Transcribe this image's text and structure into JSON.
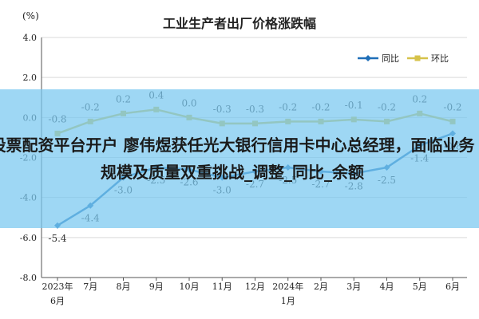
{
  "chart_data": {
    "type": "line",
    "title": "工业生产者出厂价格涨跌幅",
    "unit_label": "(%)",
    "categories": [
      [
        "2023年",
        "6月"
      ],
      [
        "7月"
      ],
      [
        "8月"
      ],
      [
        "9月"
      ],
      [
        "10月"
      ],
      [
        "11月"
      ],
      [
        "12月"
      ],
      [
        "2024年",
        "1月"
      ],
      [
        "2月"
      ],
      [
        "3月"
      ],
      [
        "4月"
      ],
      [
        "5月"
      ],
      [
        "6月"
      ]
    ],
    "ylim": [
      -8.0,
      4.0
    ],
    "yticks": [
      "4.0",
      "2.0",
      "0.0",
      "-2.0",
      "-4.0",
      "-6.0",
      "-8.0"
    ],
    "ytick_values": [
      4,
      2,
      0,
      -2,
      -4,
      -6,
      -8
    ],
    "grid": true,
    "legend_position": "top-right",
    "series": [
      {
        "name": "同比",
        "color": "#1f6fb8",
        "values": [
          -5.4,
          -4.4,
          -3.0,
          -2.5,
          -2.6,
          -3.0,
          -2.7,
          -2.5,
          -2.7,
          -2.8,
          -2.5,
          -1.4,
          -0.8
        ],
        "labels": [
          "-5.4",
          "-4.4",
          "-3.0",
          "-2.5",
          "-2.6",
          "-3.0",
          "-2.7",
          "-2.5",
          "-2.7",
          "-2.8",
          "-2.5",
          "-1.4",
          "-0.8"
        ]
      },
      {
        "name": "环比",
        "color": "#d6c24a",
        "values": [
          -0.8,
          -0.2,
          0.2,
          0.4,
          0.0,
          -0.3,
          -0.3,
          -0.2,
          -0.2,
          -0.1,
          -0.2,
          0.2,
          -0.2
        ],
        "labels": [
          "-0.8",
          "-0.2",
          "0.2",
          "0.4",
          "0.0",
          "-0.3",
          "-0.3",
          "-0.2",
          "-0.2",
          "-0.1",
          "-0.2",
          "0.2",
          "-0.2"
        ]
      }
    ]
  },
  "overlay": {
    "text": "股票配资平台开户 廖伟煜获任光大银行信用卡中心总经理，面临业务规模及质量双重挑战_调整_同比_余额"
  }
}
